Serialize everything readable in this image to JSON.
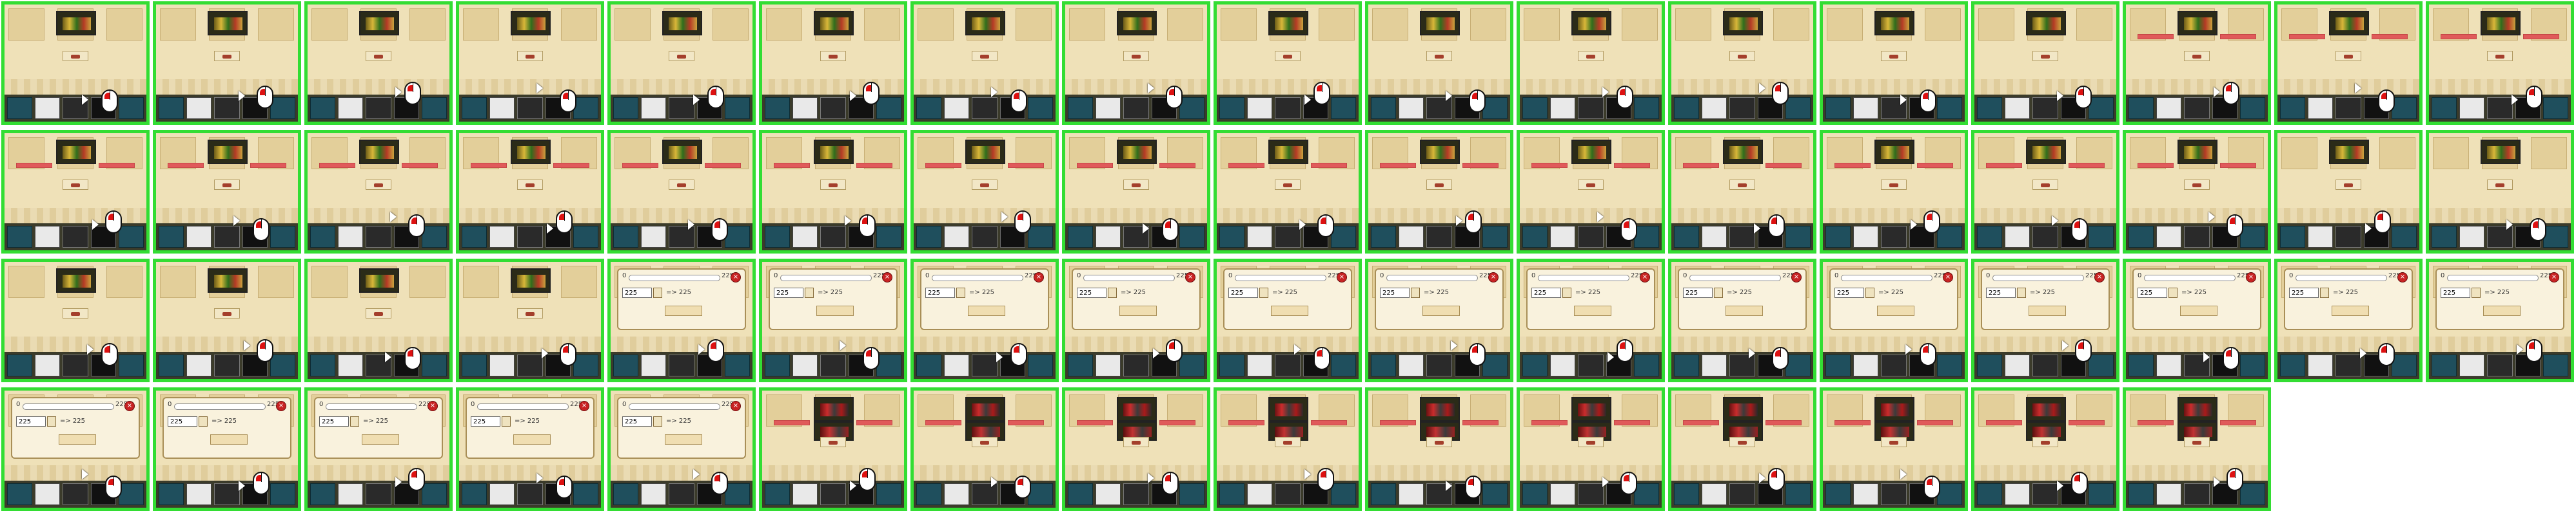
{
  "dialog": {
    "min_label": "0",
    "max_label": "225",
    "quantity_value": "225",
    "conversion_text": "=> 225",
    "close_glyph": "×"
  },
  "colors": {
    "frame_border": "#33dd33",
    "bar_red": "#e05a5a",
    "mouse_red": "#d11111"
  },
  "frames": [
    {
      "state": "item",
      "bars": false
    },
    {
      "state": "item",
      "bars": false
    },
    {
      "state": "item",
      "bars": false
    },
    {
      "state": "item",
      "bars": false
    },
    {
      "state": "item",
      "bars": false
    },
    {
      "state": "item",
      "bars": false
    },
    {
      "state": "item",
      "bars": false
    },
    {
      "state": "item",
      "bars": false
    },
    {
      "state": "item",
      "bars": false
    },
    {
      "state": "item",
      "bars": false
    },
    {
      "state": "item",
      "bars": false
    },
    {
      "state": "item",
      "bars": false
    },
    {
      "state": "item",
      "bars": false
    },
    {
      "state": "item",
      "bars": false
    },
    {
      "state": "item",
      "bars": true
    },
    {
      "state": "item",
      "bars": true
    },
    {
      "state": "item",
      "bars": true
    },
    {
      "state": "item",
      "bars": true
    },
    {
      "state": "item",
      "bars": true
    },
    {
      "state": "item",
      "bars": true
    },
    {
      "state": "item",
      "bars": true
    },
    {
      "state": "item",
      "bars": true
    },
    {
      "state": "item",
      "bars": true
    },
    {
      "state": "item",
      "bars": true
    },
    {
      "state": "item",
      "bars": true
    },
    {
      "state": "item",
      "bars": true
    },
    {
      "state": "item",
      "bars": true
    },
    {
      "state": "item",
      "bars": true
    },
    {
      "state": "item",
      "bars": true
    },
    {
      "state": "item",
      "bars": true
    },
    {
      "state": "item",
      "bars": true
    },
    {
      "state": "item",
      "bars": true
    },
    {
      "state": "item",
      "bars": false
    },
    {
      "state": "item",
      "bars": false
    },
    {
      "state": "item",
      "bars": false
    },
    {
      "state": "item",
      "bars": false
    },
    {
      "state": "item",
      "bars": false
    },
    {
      "state": "item",
      "bars": false
    },
    {
      "state": "dialog",
      "bars": false
    },
    {
      "state": "dialog",
      "bars": false
    },
    {
      "state": "dialog",
      "bars": false
    },
    {
      "state": "dialog",
      "bars": false
    },
    {
      "state": "dialog",
      "bars": false
    },
    {
      "state": "dialog",
      "bars": false
    },
    {
      "state": "dialog",
      "bars": false
    },
    {
      "state": "dialog",
      "bars": false
    },
    {
      "state": "dialog",
      "bars": false
    },
    {
      "state": "dialog",
      "bars": false
    },
    {
      "state": "dialog",
      "bars": false
    },
    {
      "state": "dialog",
      "bars": false
    },
    {
      "state": "dialog",
      "bars": false
    },
    {
      "state": "dialog",
      "bars": false
    },
    {
      "state": "dialog",
      "bars": false
    },
    {
      "state": "dialog",
      "bars": false
    },
    {
      "state": "dialog",
      "bars": false
    },
    {
      "state": "dialog",
      "bars": false
    },
    {
      "state": "item2",
      "bars": true
    },
    {
      "state": "item2",
      "bars": true
    },
    {
      "state": "item2",
      "bars": true
    },
    {
      "state": "item2",
      "bars": true
    },
    {
      "state": "item2",
      "bars": true
    },
    {
      "state": "item2",
      "bars": true
    },
    {
      "state": "item2",
      "bars": true
    },
    {
      "state": "item2",
      "bars": true
    },
    {
      "state": "item2",
      "bars": true
    },
    {
      "state": "item2",
      "bars": true
    }
  ]
}
